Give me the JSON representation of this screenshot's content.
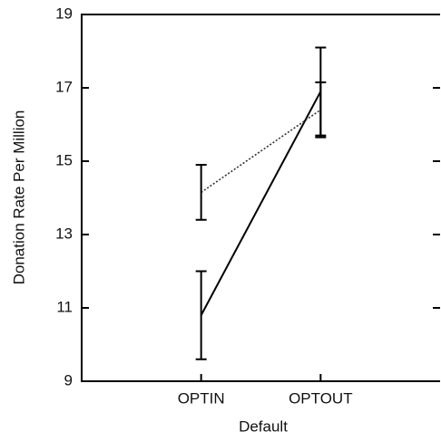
{
  "chart_data": {
    "type": "line",
    "xlabel": "Default",
    "ylabel": "Donation Rate Per Million",
    "categories": [
      "OPTIN",
      "OPTOUT"
    ],
    "series": [
      {
        "color": "#000000",
        "dash": "solid",
        "values": [
          10.8,
          16.9
        ],
        "errors": [
          1.2,
          1.2
        ]
      },
      {
        "color": "#333333",
        "dash": "dotted",
        "values": [
          14.15,
          16.4
        ],
        "errors": [
          0.75,
          0.75
        ]
      }
    ],
    "ylim": [
      9,
      19
    ],
    "yticks": [
      9,
      11,
      13,
      15,
      17,
      19
    ]
  }
}
